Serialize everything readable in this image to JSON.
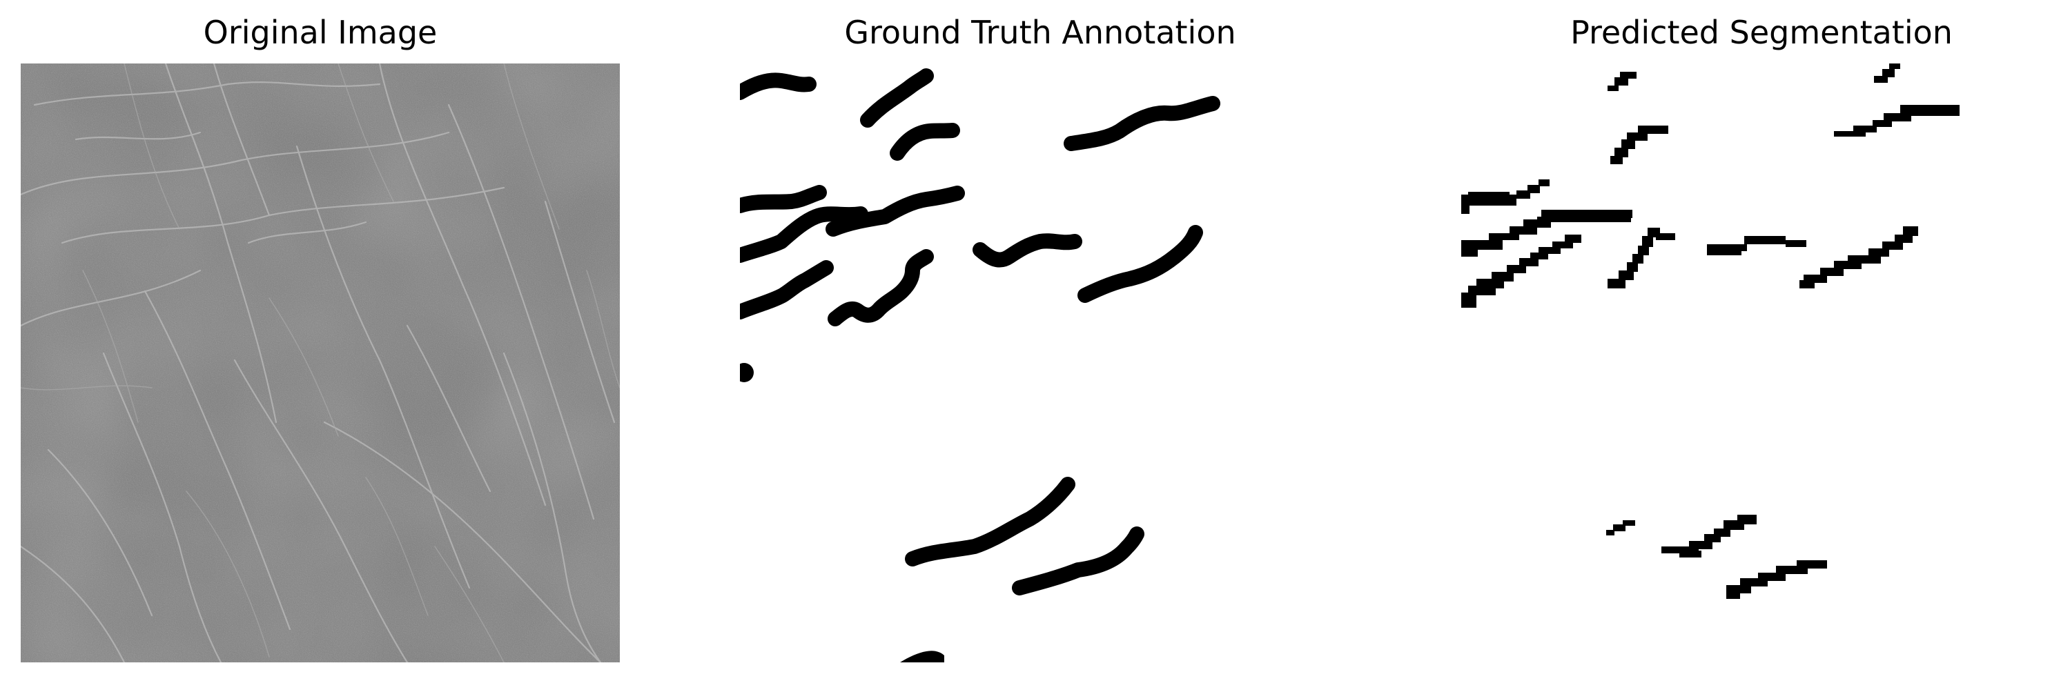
{
  "titles": {
    "original": "Original Image",
    "ground_truth": "Ground Truth Annotation",
    "prediction": "Predicted Segmentation"
  },
  "colors": {
    "texture_base": "#7a7a7a",
    "crack_light": "#bdbdbd",
    "mask_foreground": "#000000",
    "mask_background": "#ffffff"
  }
}
